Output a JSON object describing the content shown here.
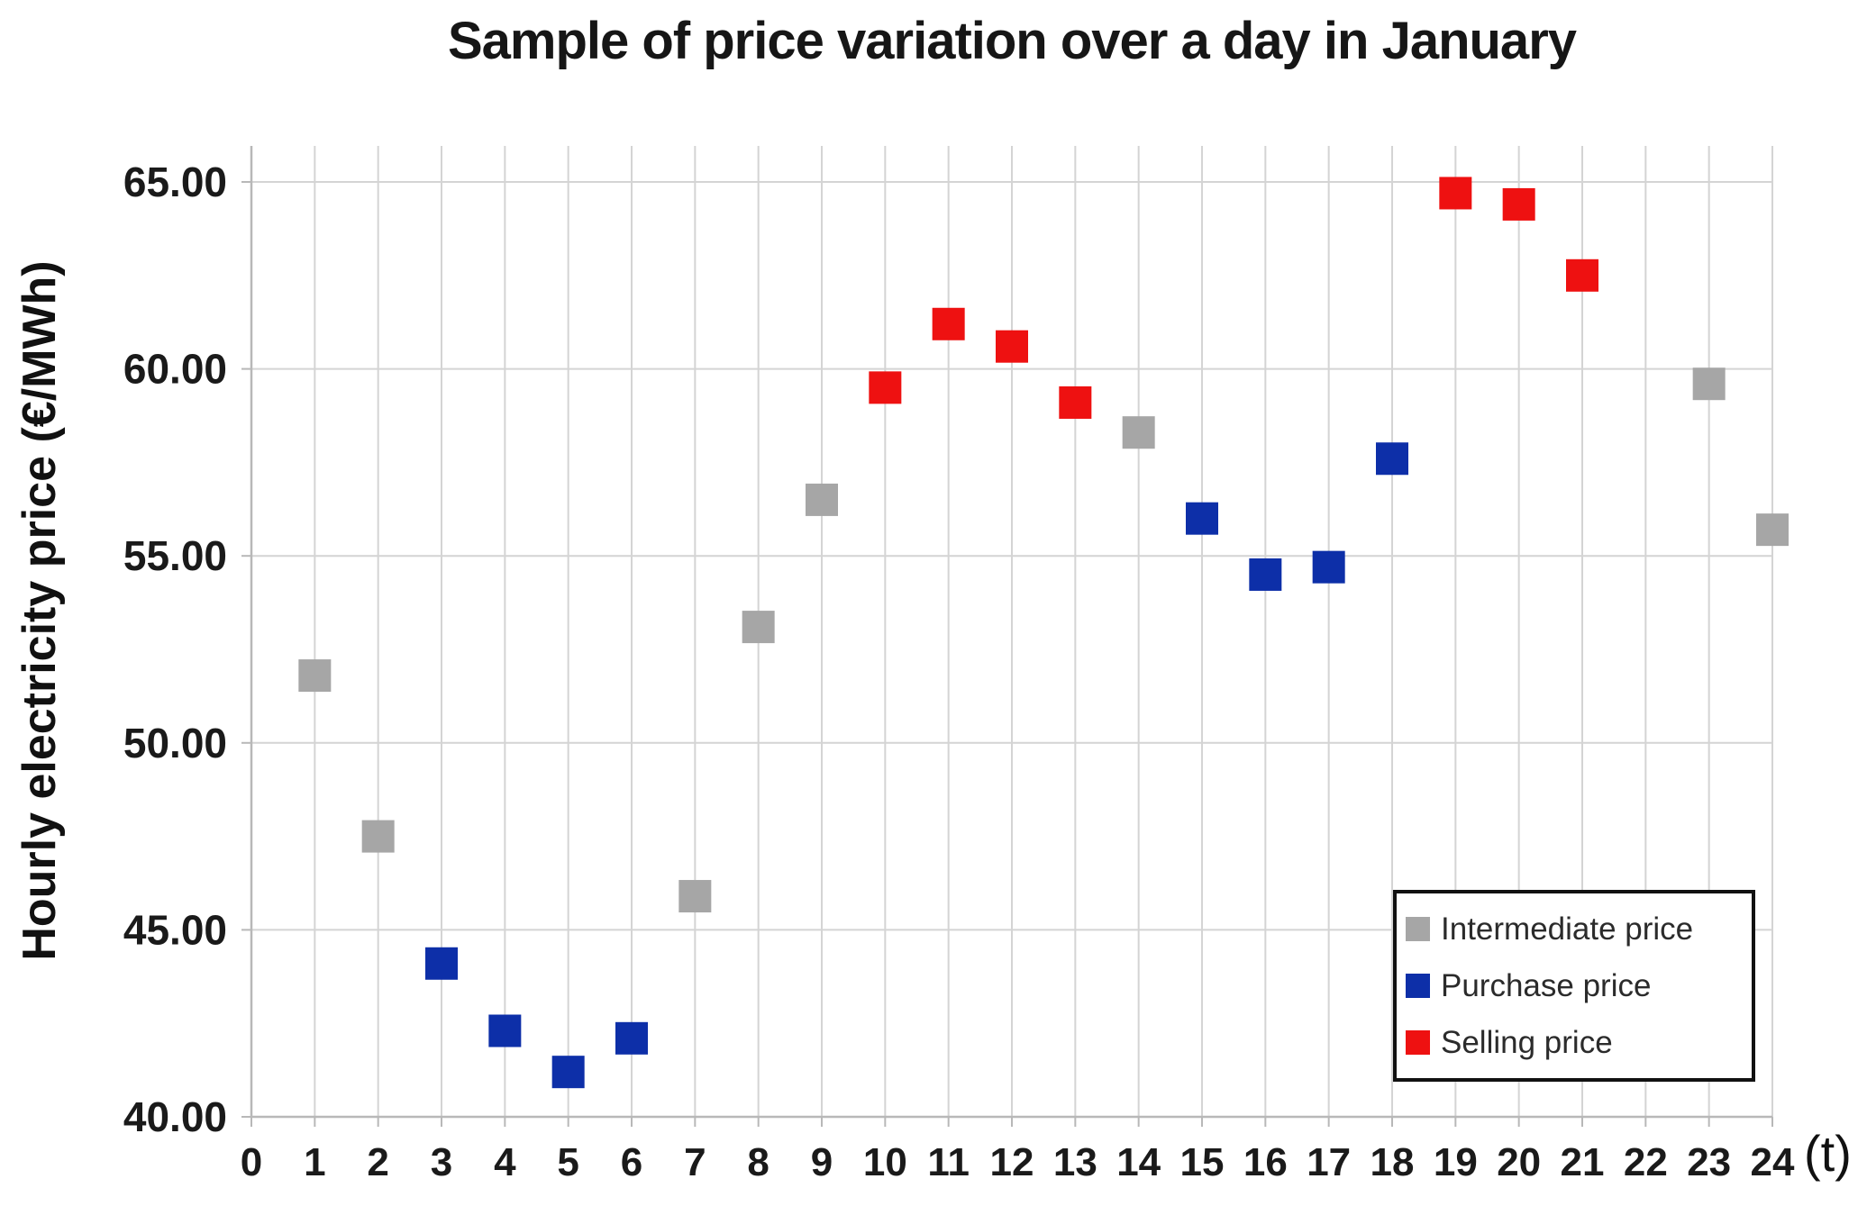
{
  "title": "Sample of price variation over a day in January",
  "colors": {
    "intermediate": "#a6a6a6",
    "purchase": "#0d2fa8",
    "selling": "#ee1111",
    "gridline": "#d4d4d4",
    "axis_line": "#b8b8b8",
    "text": "#1a1a1a",
    "legend_border": "#111111"
  },
  "legend": {
    "items": [
      {
        "label": "Intermediate price",
        "color": "#a6a6a6"
      },
      {
        "label": "Purchase price",
        "color": "#0d2fa8"
      },
      {
        "label": "Selling price",
        "color": "#ee1111"
      }
    ]
  },
  "chart_data": {
    "type": "scatter",
    "title": "Sample of price variation over a day in January",
    "xlabel": "(t)",
    "ylabel": "Hourly electricity price (€/MWh)",
    "xlim": [
      0,
      24
    ],
    "ylim": [
      40,
      66
    ],
    "grid": true,
    "legend_position": "bottom-right",
    "x_ticks": [
      0,
      1,
      2,
      3,
      4,
      5,
      6,
      7,
      8,
      9,
      10,
      11,
      12,
      13,
      14,
      15,
      16,
      17,
      18,
      19,
      20,
      21,
      22,
      23,
      24
    ],
    "y_ticks": [
      "40.00",
      "45.00",
      "50.00",
      "55.00",
      "60.00",
      "65.00"
    ],
    "series": [
      {
        "name": "Intermediate price",
        "color": "#a6a6a6",
        "points": [
          [
            1,
            51.8
          ],
          [
            2,
            47.5
          ],
          [
            7,
            45.9
          ],
          [
            8,
            53.1
          ],
          [
            9,
            56.5
          ],
          [
            14,
            58.3
          ],
          [
            23,
            59.6
          ],
          [
            24,
            55.7
          ]
        ]
      },
      {
        "name": "Purchase price",
        "color": "#0d2fa8",
        "points": [
          [
            3,
            44.1
          ],
          [
            4,
            42.3
          ],
          [
            5,
            41.2
          ],
          [
            6,
            42.1
          ],
          [
            15,
            56.0
          ],
          [
            16,
            54.5
          ],
          [
            17,
            54.7
          ],
          [
            18,
            57.6
          ]
        ]
      },
      {
        "name": "Selling price",
        "color": "#ee1111",
        "points": [
          [
            10,
            59.5
          ],
          [
            11,
            61.2
          ],
          [
            12,
            60.6
          ],
          [
            13,
            59.1
          ],
          [
            19,
            64.7
          ],
          [
            20,
            64.4
          ],
          [
            21,
            62.5
          ]
        ]
      }
    ]
  }
}
